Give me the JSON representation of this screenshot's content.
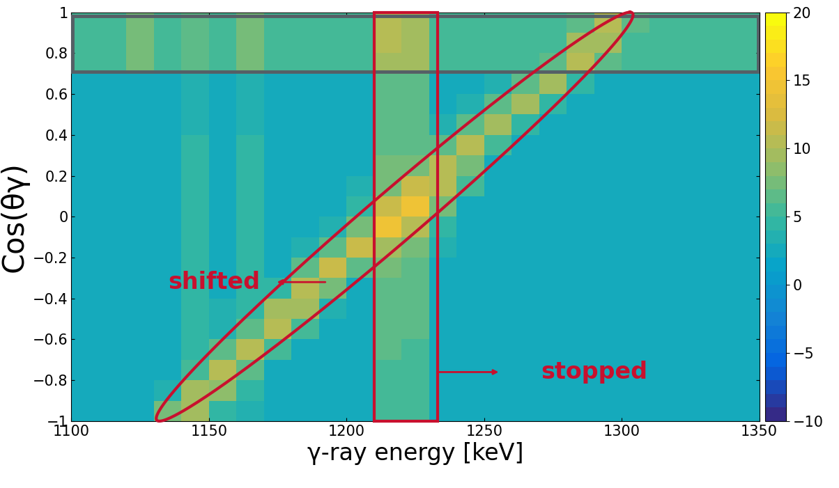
{
  "chart_data": {
    "type": "heatmap",
    "xlabel": "γ-ray energy [keV]",
    "ylabel": "Cos(θγ)",
    "annotations": [
      "shifted",
      "stopped"
    ],
    "xlim": [
      1100,
      1350
    ],
    "xticks": [
      1100,
      1150,
      1200,
      1250,
      1300,
      1350
    ],
    "ylim": [
      -1,
      1
    ],
    "yticks": [
      {
        "value": -1,
        "label": "−1"
      },
      {
        "value": -0.8,
        "label": "−0.8"
      },
      {
        "value": -0.6,
        "label": "−0.6"
      },
      {
        "value": -0.4,
        "label": "−0.4"
      },
      {
        "value": -0.2,
        "label": "−0.2"
      },
      0,
      0.2,
      0.4,
      0.6,
      0.8,
      1
    ],
    "x_bins": [
      1100,
      1110,
      1120,
      1130,
      1140,
      1150,
      1160,
      1170,
      1180,
      1190,
      1200,
      1210,
      1220,
      1230,
      1240,
      1250,
      1260,
      1270,
      1280,
      1290,
      1300,
      1310,
      1320,
      1330,
      1340,
      1350
    ],
    "y_bins": [
      -1,
      -0.9,
      -0.8,
      -0.7,
      -0.6,
      -0.5,
      -0.4,
      -0.3,
      -0.2,
      -0.1,
      0,
      0.1,
      0.2,
      0.3,
      0.4,
      0.5,
      0.6,
      0.7,
      0.8,
      0.9,
      1
    ],
    "cells": [
      [
        2,
        2,
        2,
        7,
        9,
        4,
        3,
        2,
        2,
        2,
        2,
        5,
        5,
        2,
        2,
        2,
        2,
        2,
        2,
        2,
        2,
        2,
        2,
        2,
        2
      ],
      [
        2,
        2,
        2,
        3,
        9,
        8,
        4,
        2,
        2,
        2,
        2,
        5,
        5,
        2,
        2,
        2,
        2,
        2,
        2,
        2,
        2,
        2,
        2,
        2,
        2
      ],
      [
        2,
        2,
        2,
        2,
        5,
        10,
        6,
        2,
        2,
        2,
        2,
        5,
        5,
        2,
        2,
        2,
        2,
        2,
        2,
        2,
        2,
        2,
        2,
        2,
        2
      ],
      [
        2,
        2,
        2,
        2,
        4,
        6,
        10,
        5,
        2,
        2,
        2,
        6,
        5,
        2,
        2,
        2,
        2,
        2,
        2,
        2,
        2,
        2,
        2,
        2,
        2
      ],
      [
        2,
        2,
        2,
        2,
        4,
        3,
        6,
        10,
        5,
        2,
        2,
        6,
        6,
        2,
        2,
        2,
        2,
        2,
        2,
        2,
        2,
        2,
        2,
        2,
        2
      ],
      [
        2,
        2,
        2,
        2,
        4,
        3,
        4,
        9,
        9,
        3,
        2,
        6,
        6,
        2,
        2,
        2,
        2,
        2,
        2,
        2,
        2,
        2,
        2,
        2,
        2
      ],
      [
        2,
        2,
        2,
        2,
        4,
        2,
        4,
        4,
        10,
        7,
        2,
        6,
        6,
        2,
        2,
        2,
        2,
        2,
        2,
        2,
        2,
        2,
        2,
        2,
        2
      ],
      [
        2,
        2,
        2,
        2,
        4,
        2,
        4,
        2,
        6,
        11,
        6,
        7,
        6,
        2,
        2,
        2,
        2,
        2,
        2,
        2,
        2,
        2,
        2,
        2,
        2
      ],
      [
        2,
        2,
        2,
        2,
        4,
        2,
        4,
        2,
        3,
        6,
        11,
        9,
        7,
        3,
        2,
        2,
        2,
        2,
        2,
        2,
        2,
        2,
        2,
        2,
        2
      ],
      [
        2,
        2,
        2,
        2,
        4,
        2,
        4,
        2,
        2,
        3,
        7,
        14,
        10,
        4,
        2,
        2,
        2,
        2,
        2,
        2,
        2,
        2,
        2,
        2,
        2
      ],
      [
        2,
        2,
        2,
        2,
        4,
        2,
        4,
        2,
        2,
        2,
        4,
        11,
        14,
        7,
        2,
        2,
        2,
        2,
        2,
        2,
        2,
        2,
        2,
        2,
        2
      ],
      [
        2,
        2,
        2,
        2,
        4,
        2,
        4,
        2,
        2,
        2,
        3,
        7,
        11,
        10,
        5,
        2,
        2,
        2,
        2,
        2,
        2,
        2,
        2,
        2,
        2
      ],
      [
        2,
        2,
        2,
        2,
        4,
        2,
        4,
        2,
        2,
        2,
        2,
        7,
        7,
        10,
        7,
        2,
        2,
        2,
        2,
        2,
        2,
        2,
        2,
        2,
        2
      ],
      [
        2,
        2,
        2,
        2,
        4,
        2,
        4,
        2,
        2,
        2,
        2,
        6,
        6,
        6,
        10,
        5,
        2,
        2,
        2,
        2,
        2,
        2,
        2,
        2,
        2
      ],
      [
        2,
        2,
        2,
        2,
        3,
        2,
        3,
        2,
        2,
        2,
        2,
        6,
        6,
        3,
        6,
        9,
        4,
        2,
        2,
        2,
        2,
        2,
        2,
        2,
        2
      ],
      [
        2,
        2,
        2,
        2,
        3,
        2,
        3,
        2,
        2,
        2,
        2,
        6,
        6,
        2,
        3,
        6,
        9,
        4,
        2,
        2,
        2,
        2,
        2,
        2,
        2
      ],
      [
        2,
        2,
        2,
        2,
        3,
        2,
        3,
        2,
        2,
        2,
        2,
        6,
        6,
        2,
        2,
        3,
        6,
        9,
        4,
        2,
        2,
        2,
        2,
        2,
        2
      ],
      [
        5,
        5,
        7,
        5,
        6,
        5,
        7,
        5,
        5,
        5,
        5,
        9,
        9,
        5,
        5,
        5,
        5,
        6,
        10,
        6,
        5,
        5,
        5,
        5,
        5
      ],
      [
        5,
        5,
        7,
        5,
        6,
        5,
        7,
        5,
        5,
        5,
        5,
        10,
        9,
        5,
        5,
        5,
        5,
        5,
        9,
        9,
        5,
        5,
        5,
        5,
        5
      ],
      [
        5,
        5,
        7,
        5,
        6,
        5,
        7,
        5,
        5,
        5,
        5,
        10,
        9,
        5,
        5,
        5,
        5,
        5,
        6,
        10,
        6,
        5,
        5,
        5,
        5
      ]
    ],
    "colorbar": {
      "range": [
        -10,
        20
      ],
      "ticks": [
        {
          "value": -10,
          "label": "−10"
        },
        {
          "value": -5,
          "label": "−5"
        },
        0,
        5,
        10,
        15,
        20
      ]
    }
  }
}
